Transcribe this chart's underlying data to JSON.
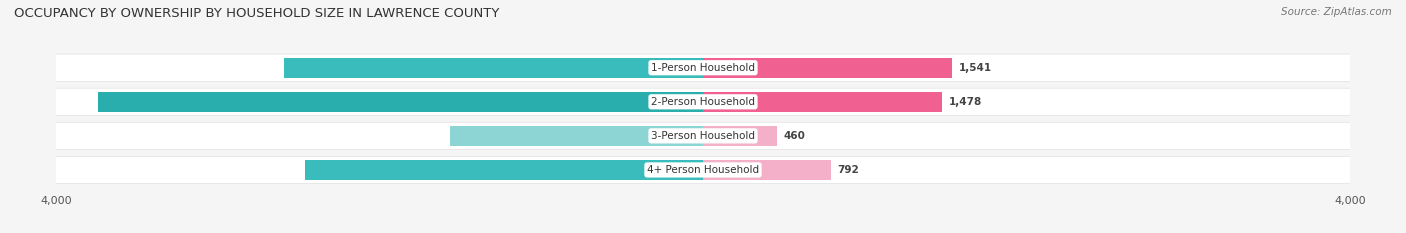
{
  "title": "OCCUPANCY BY OWNERSHIP BY HOUSEHOLD SIZE IN LAWRENCE COUNTY",
  "source": "Source: ZipAtlas.com",
  "categories": [
    "1-Person Household",
    "2-Person Household",
    "3-Person Household",
    "4+ Person Household"
  ],
  "owner_values": [
    2592,
    3742,
    1564,
    2460
  ],
  "renter_values": [
    1541,
    1478,
    460,
    792
  ],
  "max_val": 4000,
  "owner_colors": [
    "#3BBCBC",
    "#2AADAD",
    "#8DD4D4",
    "#3BBCBC"
  ],
  "renter_colors": [
    "#F06090",
    "#F06090",
    "#F4B0C8",
    "#F4B0C8"
  ],
  "bg_color": "#f5f5f5",
  "row_bg_color": "#ffffff",
  "row_sep_color": "#e0e0e0",
  "title_fontsize": 9.5,
  "source_fontsize": 7.5,
  "value_fontsize": 7.5,
  "cat_fontsize": 7.5,
  "tick_fontsize": 8,
  "legend_fontsize": 8,
  "bar_height": 0.6
}
